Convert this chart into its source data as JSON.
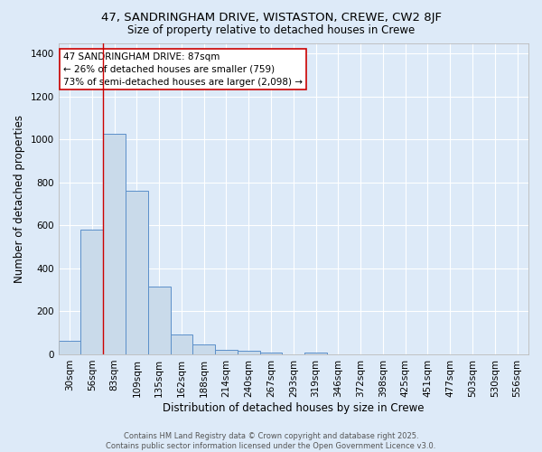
{
  "title1": "47, SANDRINGHAM DRIVE, WISTASTON, CREWE, CW2 8JF",
  "title2": "Size of property relative to detached houses in Crewe",
  "xlabel": "Distribution of detached houses by size in Crewe",
  "ylabel": "Number of detached properties",
  "bar_labels": [
    "30sqm",
    "56sqm",
    "83sqm",
    "109sqm",
    "135sqm",
    "162sqm",
    "188sqm",
    "214sqm",
    "240sqm",
    "267sqm",
    "293sqm",
    "319sqm",
    "346sqm",
    "372sqm",
    "398sqm",
    "425sqm",
    "451sqm",
    "477sqm",
    "503sqm",
    "530sqm",
    "556sqm"
  ],
  "bar_values": [
    65,
    580,
    1025,
    760,
    315,
    93,
    45,
    22,
    18,
    10,
    0,
    10,
    0,
    0,
    0,
    0,
    0,
    0,
    0,
    0,
    0
  ],
  "bar_color": "#c9daea",
  "bar_edge_color": "#5b8fc9",
  "background_color": "#ddeaf8",
  "grid_color": "#ffffff",
  "vline_color": "#cc0000",
  "annotation_text": "47 SANDRINGHAM DRIVE: 87sqm\n← 26% of detached houses are smaller (759)\n73% of semi-detached houses are larger (2,098) →",
  "annotation_box_color": "#ffffff",
  "annotation_edge_color": "#cc0000",
  "ylim": [
    0,
    1450
  ],
  "footer1": "Contains HM Land Registry data © Crown copyright and database right 2025.",
  "footer2": "Contains public sector information licensed under the Open Government Licence v3.0."
}
